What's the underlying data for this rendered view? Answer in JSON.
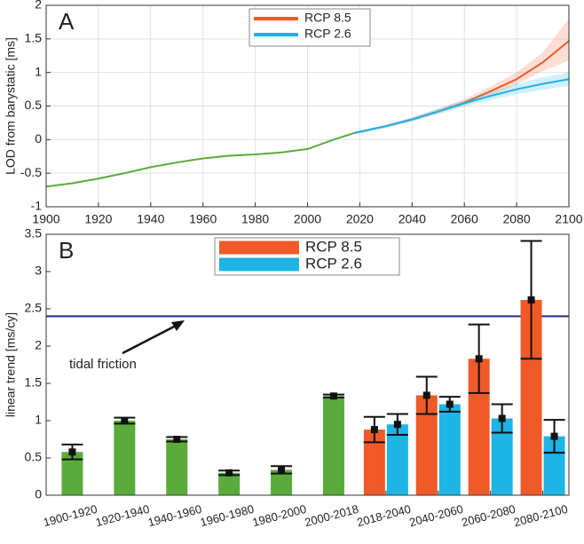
{
  "chart_data": [
    {
      "type": "line",
      "panel_label": "A",
      "ylabel": "LOD from barystatic [ms]",
      "xlim": [
        1900,
        2100
      ],
      "xticks": [
        1900,
        1920,
        1940,
        1960,
        1980,
        2000,
        2020,
        2040,
        2060,
        2080,
        2100
      ],
      "ylim": [
        -1,
        2
      ],
      "yticks": [
        -1,
        -0.5,
        0,
        0.5,
        1,
        1.5,
        2
      ],
      "grid": true,
      "legend": "top-center",
      "series": [
        {
          "color": "#5aab3c",
          "x": [
            1900,
            1910,
            1920,
            1930,
            1940,
            1950,
            1960,
            1970,
            1980,
            1990,
            2000,
            2010,
            2018
          ],
          "values": [
            -0.7,
            -0.65,
            -0.58,
            -0.5,
            -0.41,
            -0.34,
            -0.28,
            -0.24,
            -0.22,
            -0.19,
            -0.14,
            0.0,
            0.1
          ]
        },
        {
          "name": "RCP 8.5",
          "color": "#f05a28",
          "x": [
            2018,
            2030,
            2040,
            2050,
            2060,
            2070,
            2080,
            2090,
            2100
          ],
          "values": [
            0.1,
            0.2,
            0.3,
            0.42,
            0.55,
            0.72,
            0.9,
            1.15,
            1.47
          ],
          "upper": [
            0.12,
            0.22,
            0.33,
            0.46,
            0.6,
            0.79,
            1.0,
            1.3,
            1.8
          ],
          "lower": [
            0.08,
            0.18,
            0.28,
            0.39,
            0.51,
            0.66,
            0.82,
            1.02,
            1.18
          ]
        },
        {
          "name": "RCP 2.6",
          "color": "#1eb4e6",
          "x": [
            2018,
            2030,
            2040,
            2050,
            2060,
            2070,
            2080,
            2090,
            2100
          ],
          "values": [
            0.1,
            0.2,
            0.3,
            0.42,
            0.54,
            0.65,
            0.75,
            0.83,
            0.9
          ],
          "upper": [
            0.12,
            0.22,
            0.33,
            0.46,
            0.59,
            0.71,
            0.83,
            0.93,
            1.0
          ],
          "lower": [
            0.08,
            0.18,
            0.27,
            0.38,
            0.49,
            0.59,
            0.68,
            0.74,
            0.8
          ]
        }
      ]
    },
    {
      "type": "bar",
      "panel_label": "B",
      "ylabel": "linear trend [ms/cy]",
      "ylim": [
        0,
        3.5
      ],
      "yticks": [
        0,
        0.5,
        1,
        1.5,
        2,
        2.5,
        3,
        3.5
      ],
      "grid": false,
      "legend": "top-center",
      "categories": [
        "1900-1920",
        "1920-1940",
        "1940-1960",
        "1960-1980",
        "1980-2000",
        "2000-2018",
        "2018-2040",
        "2040-2060",
        "2060-2080",
        "2080-2100"
      ],
      "hline": {
        "value": 2.4,
        "label": "tidal friction",
        "color": "#1f2d7a"
      },
      "series": [
        {
          "color": "#5aab3c",
          "values": [
            0.58,
            1.0,
            0.75,
            0.3,
            0.34,
            1.33,
            null,
            null,
            null,
            null
          ],
          "errors": [
            0.1,
            0.04,
            0.03,
            0.03,
            0.05,
            0.02,
            null,
            null,
            null,
            null
          ]
        },
        {
          "name": "RCP 8.5",
          "color": "#f05a28",
          "values": [
            null,
            null,
            null,
            null,
            null,
            null,
            0.88,
            1.34,
            1.83,
            2.62
          ],
          "errors": [
            null,
            null,
            null,
            null,
            null,
            null,
            0.17,
            0.25,
            0.46,
            0.79
          ]
        },
        {
          "name": "RCP 2.6",
          "color": "#1eb4e6",
          "values": [
            null,
            null,
            null,
            null,
            null,
            null,
            0.95,
            1.22,
            1.03,
            0.79
          ],
          "errors": [
            null,
            null,
            null,
            null,
            null,
            null,
            0.14,
            0.1,
            0.19,
            0.22
          ]
        }
      ]
    }
  ]
}
